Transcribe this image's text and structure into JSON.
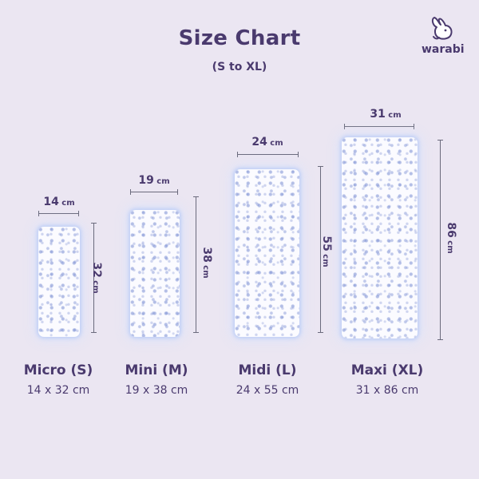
{
  "header": {
    "title": "Size Chart",
    "subtitle": "(S to XL)"
  },
  "brand": {
    "name": "warabi",
    "icon": "bunny-icon",
    "color": "#4a3a6e"
  },
  "colors": {
    "background": "#ebe6f2",
    "text": "#4a3a6e",
    "pad_pattern": "#7c8cd2",
    "measure_line": "#6b6b7d"
  },
  "unit": "cm",
  "sizes": [
    {
      "name": "Micro (S)",
      "width": "14",
      "height": "32",
      "dims": "14 x 32 cm"
    },
    {
      "name": "Mini (M)",
      "width": "19",
      "height": "38",
      "dims": "19 x 38 cm"
    },
    {
      "name": "Midi (L)",
      "width": "24",
      "height": "55",
      "dims": "24 x 55 cm"
    },
    {
      "name": "Maxi (XL)",
      "width": "31",
      "height": "86",
      "dims": "31 x 86 cm"
    }
  ]
}
